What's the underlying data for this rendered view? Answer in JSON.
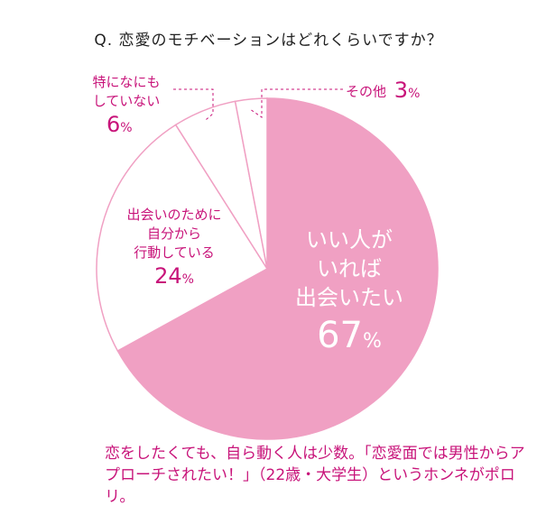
{
  "question": "Q. 恋愛のモチベーションはどれくらいですか？",
  "chart_data": {
    "type": "pie",
    "title": "Q. 恋愛のモチベーションはどれくらいですか？",
    "slices": [
      {
        "label_lines": [
          "いい人が",
          "いれば",
          "出会いたい"
        ],
        "value": 67,
        "color": "#f0a0c3"
      },
      {
        "label_lines": [
          "出会いのために",
          "自分から",
          "行動している"
        ],
        "value": 24,
        "color": "#ffffff"
      },
      {
        "label_lines": [
          "特になにも",
          "していない"
        ],
        "value": 6,
        "color": "#ffffff"
      },
      {
        "label_lines": [
          "その他"
        ],
        "value": 3,
        "color": "#ffffff"
      }
    ],
    "percent_sign": "%",
    "outline_color": "#f0a0c3",
    "text_color": "#c8147a"
  },
  "caption": "恋をしたくても、自ら動く人は少数。「恋愛面では男性からアプローチされたい！」（22歳・大学生）というホンネがポロリ。"
}
